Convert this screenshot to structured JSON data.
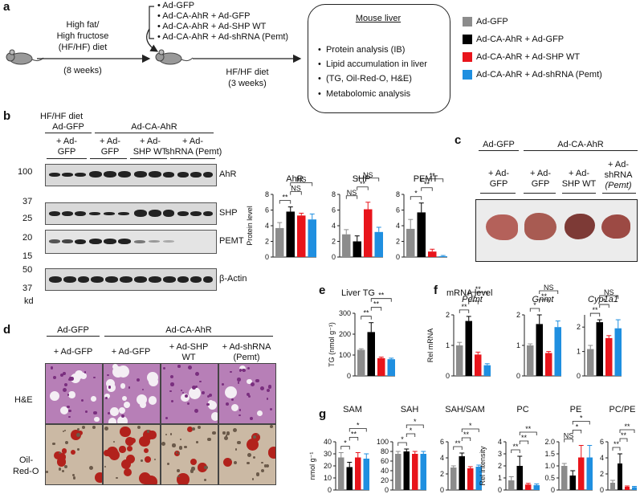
{
  "panels": {
    "a": {
      "letter": "a",
      "diet": [
        "High fat/",
        "High fructose",
        "(HF/HF) diet"
      ],
      "weeks1": "(8 weeks)",
      "treatments": [
        "• Ad-GFP",
        "• Ad-CA-AhR + Ad-GFP",
        "• Ad-CA-AhR + Ad-SHP WT",
        "• Ad-CA-AhR + Ad-shRNA (Pemt)"
      ],
      "diet2": "HF/HF diet",
      "weeks2": "(3 weeks)",
      "box_title": "Mouse liver",
      "analyses": [
        "Protein analysis (IB)",
        "Lipid accumulation in liver",
        "(TG, Oil-Red-O, H&E)",
        "Metabolomic analysis"
      ],
      "legend": [
        {
          "label": "Ad-GFP",
          "color": "#8c8c8c"
        },
        {
          "label": "Ad-CA-AhR + Ad-GFP",
          "color": "#000000"
        },
        {
          "label": "Ad-CA-AhR + Ad-SHP WT",
          "color": "#e8141b"
        },
        {
          "label": "Ad-CA-AhR + Ad-shRNA (Pemt)",
          "color": "#1f8fe0"
        }
      ]
    },
    "b": {
      "letter": "b",
      "hfhf": "HF/HF diet",
      "grp1": "Ad-GFP",
      "grp2": "Ad-CA-AhR",
      "lanes": [
        "+ Ad-",
        "GFP",
        "+ Ad-",
        "GFP",
        "+ Ad-",
        "SHP WT",
        "+ Ad-",
        "shRNA (Pemt)"
      ],
      "mw": [
        "100",
        "37",
        "25",
        "20",
        "15",
        "50",
        "37",
        "kd"
      ],
      "proteins": [
        "AhR",
        "SHP",
        "PEMT",
        "β-Actin"
      ],
      "bar_ylabel": "Protein level"
    },
    "c": {
      "letter": "c",
      "grp1": "Ad-GFP",
      "grp2": "Ad-CA-AhR",
      "labels": [
        "+ Ad-",
        "GFP",
        "+ Ad-",
        "GFP",
        "+ Ad-",
        "SHP WT",
        "+ Ad-",
        "shRNA",
        "(Pemt)"
      ]
    },
    "d": {
      "letter": "d",
      "grp1": "Ad-GFP",
      "grp2": "Ad-CA-AhR",
      "cols": [
        "+ Ad-GFP",
        "+ Ad-GFP",
        "+ Ad-SHP",
        "WT",
        "+ Ad-shRNA",
        "(Pemt)"
      ],
      "rows": [
        "H&E",
        "Oil-",
        "Red-O"
      ]
    },
    "e": {
      "letter": "e",
      "title": "Liver TG",
      "ylabel": "TG (nmol g⁻¹)"
    },
    "f": {
      "letter": "f",
      "title": "mRNA level",
      "ylabel": "Rel mRNA"
    },
    "g": {
      "letter": "g",
      "ylabel_sam": "nmol g⁻¹",
      "ylabel_pc": "Rel intensity"
    }
  },
  "chart_data": [
    {
      "id": "AhR",
      "type": "bar",
      "title": "AhR",
      "categories": [
        "Ad-GFP",
        "Ad-CA-AhR + Ad-GFP",
        "Ad-CA-AhR + Ad-SHP WT",
        "Ad-CA-AhR + Ad-shRNA (Pemt)"
      ],
      "values": [
        3.7,
        5.8,
        5.3,
        4.8
      ],
      "errors": [
        0.7,
        0.6,
        0.3,
        0.7
      ],
      "ylim": [
        0,
        8
      ],
      "yticks": [
        "0",
        "2",
        "4",
        "6",
        "8"
      ],
      "ylabel": "Protein level",
      "sig": [
        {
          "a": 0,
          "b": 1,
          "t": "**"
        },
        {
          "a": 1,
          "b": 2,
          "t": "NS"
        },
        {
          "a": 1,
          "b": 3,
          "t": "NS"
        }
      ]
    },
    {
      "id": "SHP",
      "type": "bar",
      "title": "SHP",
      "categories": [
        "Ad-GFP",
        "Ad-CA-AhR + Ad-GFP",
        "Ad-CA-AhR + Ad-SHP WT",
        "Ad-CA-AhR + Ad-shRNA (Pemt)"
      ],
      "values": [
        2.9,
        2.0,
        6.1,
        3.2
      ],
      "errors": [
        0.6,
        0.7,
        0.9,
        0.6
      ],
      "ylim": [
        0,
        8
      ],
      "yticks": [
        "0",
        "2",
        "4",
        "6",
        "8"
      ],
      "ylabel": "",
      "sig": [
        {
          "a": 0,
          "b": 1,
          "t": "NS"
        },
        {
          "a": 1,
          "b": 2,
          "t": "**"
        },
        {
          "a": 1,
          "b": 3,
          "t": "NS"
        }
      ]
    },
    {
      "id": "PEMT",
      "type": "bar",
      "title": "PEMT",
      "categories": [
        "Ad-GFP",
        "Ad-CA-AhR + Ad-GFP",
        "Ad-CA-AhR + Ad-SHP WT",
        "Ad-CA-AhR + Ad-shRNA (Pemt)"
      ],
      "values": [
        3.6,
        5.7,
        0.7,
        0.1
      ],
      "errors": [
        1.2,
        1.2,
        0.3,
        0.1
      ],
      "ylim": [
        0,
        8
      ],
      "yticks": [
        "0",
        "2",
        "4",
        "6",
        "8"
      ],
      "ylabel": "",
      "sig": [
        {
          "a": 0,
          "b": 1,
          "t": "*"
        },
        {
          "a": 1,
          "b": 2,
          "t": "**"
        },
        {
          "a": 1,
          "b": 3,
          "t": "**"
        }
      ]
    },
    {
      "id": "TG",
      "type": "bar",
      "title": "",
      "categories": [
        "Ad-GFP",
        "Ad-CA-AhR + Ad-GFP",
        "Ad-CA-AhR + Ad-SHP WT",
        "Ad-CA-AhR + Ad-shRNA (Pemt)"
      ],
      "values": [
        125,
        210,
        85,
        80
      ],
      "errors": [
        5,
        45,
        5,
        5
      ],
      "ylim": [
        0,
        300
      ],
      "yticks": [
        "0",
        "100",
        "200",
        "300"
      ],
      "ylabel": "TG (nmol g⁻¹)",
      "sig": [
        {
          "a": 0,
          "b": 1,
          "t": "**"
        },
        {
          "a": 1,
          "b": 2,
          "t": "**"
        },
        {
          "a": 1,
          "b": 3,
          "t": "**"
        }
      ]
    },
    {
      "id": "Pemt",
      "type": "bar",
      "title": "Pemt",
      "italic": true,
      "categories": [
        "Ad-GFP",
        "Ad-CA-AhR + Ad-GFP",
        "Ad-CA-AhR + Ad-SHP WT",
        "Ad-CA-AhR + Ad-shRNA (Pemt)"
      ],
      "values": [
        1.0,
        1.8,
        0.7,
        0.35
      ],
      "errors": [
        0.1,
        0.15,
        0.08,
        0.05
      ],
      "ylim": [
        0,
        2
      ],
      "yticks": [
        "0",
        "1",
        "2"
      ],
      "ylabel": "Rel mRNA",
      "sig": [
        {
          "a": 0,
          "b": 1,
          "t": "**"
        },
        {
          "a": 1,
          "b": 2,
          "t": "**"
        },
        {
          "a": 1,
          "b": 3,
          "t": "**"
        }
      ]
    },
    {
      "id": "Gnmt",
      "type": "bar",
      "title": "Gnmt",
      "italic": true,
      "categories": [
        "Ad-GFP",
        "Ad-CA-AhR + Ad-GFP",
        "Ad-CA-AhR + Ad-SHP WT",
        "Ad-CA-AhR + Ad-shRNA (Pemt)"
      ],
      "values": [
        1.0,
        1.7,
        0.75,
        1.6
      ],
      "errors": [
        0.05,
        0.3,
        0.05,
        0.2
      ],
      "ylim": [
        0,
        2
      ],
      "yticks": [
        "0",
        "1",
        "2"
      ],
      "ylabel": "",
      "sig": [
        {
          "a": 0,
          "b": 1,
          "t": "*"
        },
        {
          "a": 1,
          "b": 2,
          "t": "**"
        },
        {
          "a": 1,
          "b": 3,
          "t": "NS"
        }
      ]
    },
    {
      "id": "Cyp1a1",
      "type": "bar",
      "title": "Cyp1a1",
      "italic": true,
      "categories": [
        "Ad-GFP",
        "Ad-CA-AhR + Ad-GFP",
        "Ad-CA-AhR + Ad-SHP WT",
        "Ad-CA-AhR + Ad-shRNA (Pemt)"
      ],
      "values": [
        1.1,
        2.2,
        1.55,
        1.95
      ],
      "errors": [
        0.15,
        0.1,
        0.1,
        0.35
      ],
      "ylim": [
        0,
        2.5
      ],
      "yticks": [
        "0",
        "1",
        "2"
      ],
      "ylabel": "",
      "sig": [
        {
          "a": 0,
          "b": 1,
          "t": "**"
        },
        {
          "a": 1,
          "b": 2,
          "t": "*"
        },
        {
          "a": 1,
          "b": 3,
          "t": "NS"
        }
      ]
    },
    {
      "id": "SAM",
      "type": "bar",
      "title": "SAM",
      "categories": [
        "Ad-GFP",
        "Ad-CA-AhR + Ad-GFP",
        "Ad-CA-AhR + Ad-SHP WT",
        "Ad-CA-AhR + Ad-shRNA (Pemt)"
      ],
      "values": [
        27,
        19,
        27,
        26
      ],
      "errors": [
        4,
        4,
        4,
        4
      ],
      "ylim": [
        0,
        40
      ],
      "yticks": [
        "0",
        "10",
        "20",
        "30",
        "40"
      ],
      "ylabel": "nmol g⁻¹",
      "sig": [
        {
          "a": 0,
          "b": 1,
          "t": "*"
        },
        {
          "a": 1,
          "b": 2,
          "t": "**"
        },
        {
          "a": 1,
          "b": 3,
          "t": "*"
        }
      ]
    },
    {
      "id": "SAH",
      "type": "bar",
      "title": "SAH",
      "categories": [
        "Ad-GFP",
        "Ad-CA-AhR + Ad-GFP",
        "Ad-CA-AhR + Ad-SHP WT",
        "Ad-CA-AhR + Ad-shRNA (Pemt)"
      ],
      "values": [
        75,
        80,
        75,
        75
      ],
      "errors": [
        5,
        5,
        5,
        5
      ],
      "ylim": [
        0,
        100
      ],
      "yticks": [
        "0",
        "20",
        "40",
        "60",
        "80",
        "100"
      ],
      "ylabel": "",
      "sig": [
        {
          "a": 0,
          "b": 1,
          "t": "*"
        },
        {
          "a": 1,
          "b": 2,
          "t": "*"
        },
        {
          "a": 1,
          "b": 3,
          "t": "*"
        }
      ]
    },
    {
      "id": "SAHSAM",
      "type": "bar",
      "title": "SAH/SAM",
      "categories": [
        "Ad-GFP",
        "Ad-CA-AhR + Ad-GFP",
        "Ad-CA-AhR + Ad-SHP WT",
        "Ad-CA-AhR + Ad-shRNA (Pemt)"
      ],
      "values": [
        2.8,
        4.2,
        2.7,
        2.9
      ],
      "errors": [
        0.2,
        0.4,
        0.2,
        0.2
      ],
      "ylim": [
        0,
        6
      ],
      "yticks": [
        "0",
        "2",
        "4",
        "6"
      ],
      "ylabel": "",
      "sig": [
        {
          "a": 0,
          "b": 1,
          "t": "**"
        },
        {
          "a": 1,
          "b": 2,
          "t": "**"
        },
        {
          "a": 1,
          "b": 3,
          "t": "*"
        }
      ]
    },
    {
      "id": "PC",
      "type": "bar",
      "title": "PC",
      "categories": [
        "Ad-GFP",
        "Ad-CA-AhR + Ad-GFP",
        "Ad-CA-AhR + Ad-SHP WT",
        "Ad-CA-AhR + Ad-shRNA (Pemt)"
      ],
      "values": [
        0.8,
        2.0,
        0.45,
        0.4
      ],
      "errors": [
        0.3,
        0.8,
        0.1,
        0.1
      ],
      "ylim": [
        0,
        4
      ],
      "yticks": [
        "0",
        "1",
        "2",
        "3",
        "4"
      ],
      "ylabel": "Rel intensity",
      "sig": [
        {
          "a": 0,
          "b": 1,
          "t": "**"
        },
        {
          "a": 1,
          "b": 2,
          "t": "**"
        },
        {
          "a": 1,
          "b": 3,
          "t": "**"
        }
      ]
    },
    {
      "id": "PE",
      "type": "bar",
      "title": "PE",
      "categories": [
        "Ad-GFP",
        "Ad-CA-AhR + Ad-GFP",
        "Ad-CA-AhR + Ad-SHP WT",
        "Ad-CA-AhR + Ad-shRNA (Pemt)"
      ],
      "values": [
        1.0,
        0.6,
        1.35,
        1.35
      ],
      "errors": [
        0.1,
        0.2,
        0.5,
        0.5
      ],
      "ylim": [
        0,
        2
      ],
      "yticks": [
        "0",
        "0.5",
        "1.0",
        "1.5",
        "2.0"
      ],
      "ylabel": "",
      "sig": [
        {
          "a": 0,
          "b": 1,
          "t": "NS"
        },
        {
          "a": 1,
          "b": 2,
          "t": "*"
        },
        {
          "a": 1,
          "b": 3,
          "t": "*"
        }
      ]
    },
    {
      "id": "PCPE",
      "type": "bar",
      "title": "PC/PE",
      "categories": [
        "Ad-GFP",
        "Ad-CA-AhR + Ad-GFP",
        "Ad-CA-AhR + Ad-SHP WT",
        "Ad-CA-AhR + Ad-shRNA (Pemt)"
      ],
      "values": [
        0.9,
        3.3,
        0.4,
        0.35
      ],
      "errors": [
        0.3,
        1.2,
        0.1,
        0.1
      ],
      "ylim": [
        0,
        6
      ],
      "yticks": [
        "0",
        "2",
        "4",
        "6"
      ],
      "ylabel": "",
      "sig": [
        {
          "a": 0,
          "b": 1,
          "t": "**"
        },
        {
          "a": 1,
          "b": 2,
          "t": "**"
        },
        {
          "a": 1,
          "b": 3,
          "t": "**"
        }
      ]
    }
  ]
}
